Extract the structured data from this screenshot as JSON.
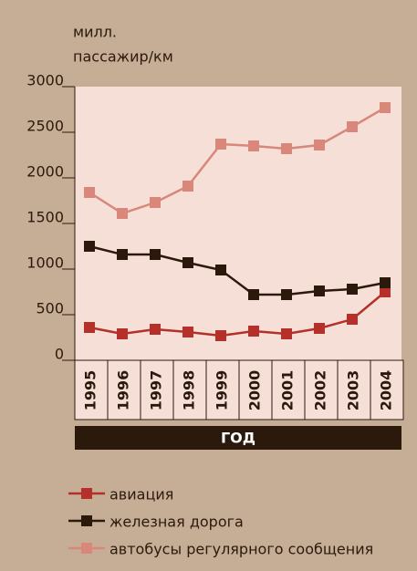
{
  "chart_data": {
    "type": "line",
    "y_label": [
      "милл.",
      "пассажир/км"
    ],
    "x_label": "ГОД",
    "categories": [
      "1995",
      "1996",
      "1997",
      "1998",
      "1999",
      "2000",
      "2001",
      "2002",
      "2003",
      "2004"
    ],
    "series": [
      {
        "name": "авиация",
        "color": "#b5302b",
        "values": [
          360,
          290,
          340,
          310,
          270,
          320,
          290,
          350,
          450,
          750
        ]
      },
      {
        "name": "железная дорога",
        "color": "#2b1a0c",
        "values": [
          1250,
          1160,
          1160,
          1070,
          990,
          720,
          720,
          760,
          780,
          850
        ]
      },
      {
        "name": "автобусы регулярного сообщения",
        "color": "#d8877a",
        "values": [
          1840,
          1610,
          1730,
          1910,
          2370,
          2350,
          2320,
          2360,
          2560,
          2770
        ]
      }
    ],
    "ylim": [
      0,
      3000
    ],
    "yticks": [
      0,
      500,
      1000,
      1500,
      2000,
      2500,
      3000
    ]
  }
}
